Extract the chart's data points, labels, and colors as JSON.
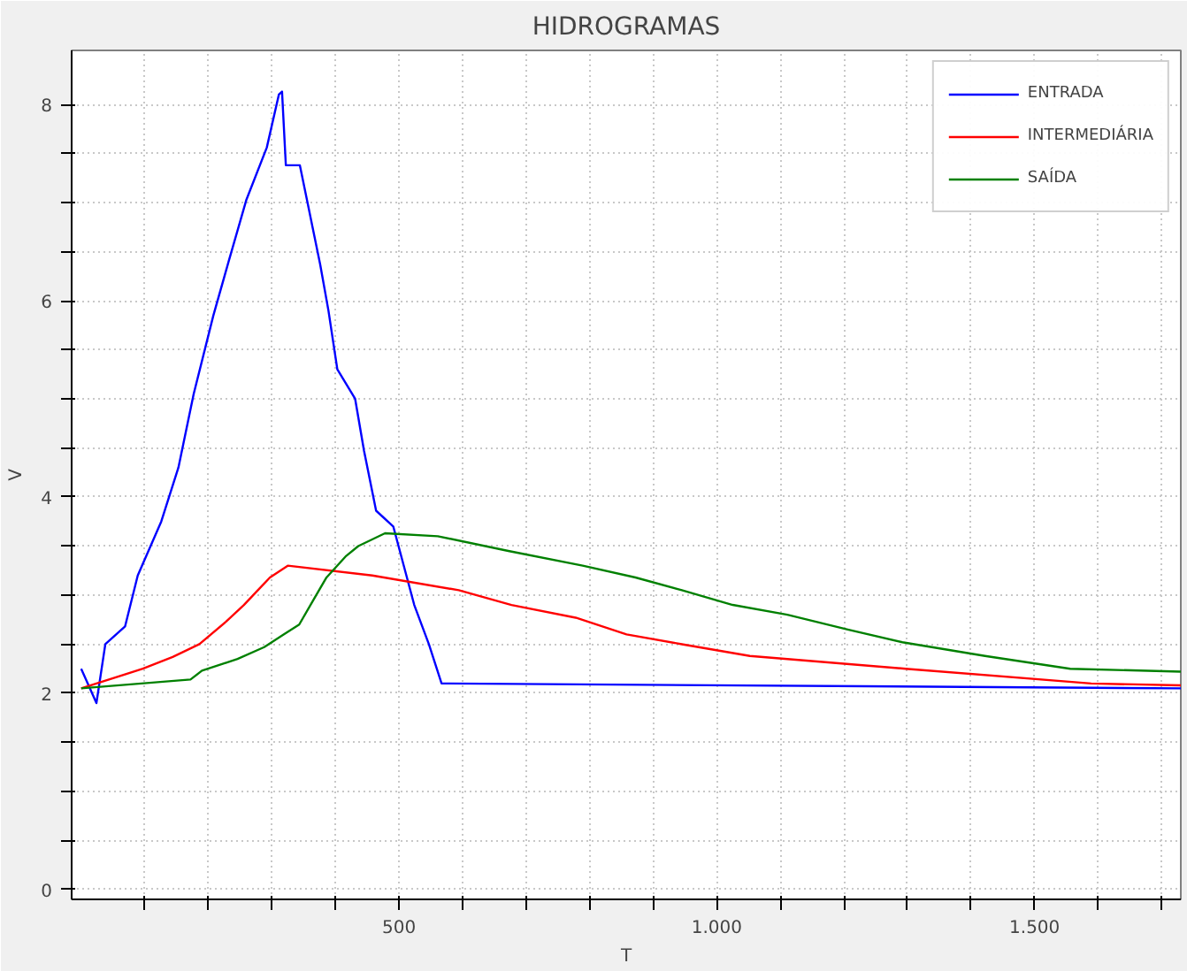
{
  "chart_data": {
    "type": "line",
    "title": "HIDROGRAMAS",
    "xlabel": "T",
    "ylabel": "V",
    "xlim": [
      -15,
      1730
    ],
    "ylim": [
      -0.1,
      8.55
    ],
    "xticks": [
      {
        "value": 100,
        "label": null
      },
      {
        "value": 200,
        "label": null
      },
      {
        "value": 300,
        "label": null
      },
      {
        "value": 400,
        "label": null
      },
      {
        "value": 500,
        "label": "500"
      },
      {
        "value": 600,
        "label": null
      },
      {
        "value": 700,
        "label": null
      },
      {
        "value": 800,
        "label": null
      },
      {
        "value": 900,
        "label": null
      },
      {
        "value": 1000,
        "label": "1.000"
      },
      {
        "value": 1100,
        "label": null
      },
      {
        "value": 1200,
        "label": null
      },
      {
        "value": 1300,
        "label": null
      },
      {
        "value": 1400,
        "label": null
      },
      {
        "value": 1500,
        "label": "1.500"
      },
      {
        "value": 1600,
        "label": null
      },
      {
        "value": 1700,
        "label": null
      }
    ],
    "yticks": [
      0,
      {
        "value": 0.5,
        "label": null
      },
      {
        "value": 1,
        "label": null
      },
      {
        "value": 1.5,
        "label": null
      },
      2,
      {
        "value": 2.5,
        "label": null
      },
      {
        "value": 3,
        "label": null
      },
      {
        "value": 3.5,
        "label": null
      },
      4,
      {
        "value": 4.5,
        "label": null
      },
      {
        "value": 5,
        "label": null
      },
      {
        "value": 5.5,
        "label": null
      },
      6,
      {
        "value": 6.5,
        "label": null
      },
      {
        "value": 7,
        "label": null
      },
      {
        "value": 7.5,
        "label": null
      },
      8
    ],
    "grid": true,
    "legend": "top right",
    "line_style": "solid",
    "series": [
      {
        "name": "ENTRADA",
        "color": "#0000ff",
        "x": [
          0,
          24,
          38,
          69,
          89,
          126,
          153,
          177,
          208,
          232,
          260,
          292,
          311,
          316,
          322,
          344,
          357,
          376,
          389,
          403,
          431,
          445,
          464,
          491,
          524,
          547,
          567,
          1730
        ],
        "values": [
          2.25,
          1.9,
          2.5,
          2.68,
          3.2,
          3.75,
          4.3,
          5.05,
          5.85,
          6.4,
          7.03,
          7.56,
          8.1,
          8.13,
          7.38,
          7.38,
          6.97,
          6.37,
          5.9,
          5.3,
          5.0,
          4.47,
          3.86,
          3.7,
          2.9,
          2.5,
          2.1,
          2.05
        ]
      },
      {
        "name": "INTERMEDIÁRIA",
        "color": "#ff0000",
        "x": [
          0,
          97,
          144,
          186,
          228,
          256,
          278,
          297,
          325,
          458,
          594,
          677,
          778,
          858,
          945,
          1052,
          1297,
          1589,
          1730
        ],
        "values": [
          2.05,
          2.25,
          2.37,
          2.5,
          2.73,
          2.9,
          3.05,
          3.18,
          3.3,
          3.2,
          3.05,
          2.9,
          2.77,
          2.6,
          2.5,
          2.38,
          2.25,
          2.1,
          2.08
        ]
      },
      {
        "name": "SAÍDA",
        "color": "#008000",
        "x": [
          0,
          172,
          190,
          246,
          288,
          319,
          343,
          367,
          386,
          417,
          436,
          478,
          561,
          672,
          789,
          872,
          945,
          1025,
          1111,
          1206,
          1292,
          1422,
          1556,
          1730
        ],
        "values": [
          2.05,
          2.14,
          2.23,
          2.35,
          2.47,
          2.6,
          2.7,
          2.97,
          3.18,
          3.4,
          3.5,
          3.63,
          3.6,
          3.45,
          3.3,
          3.18,
          3.05,
          2.9,
          2.8,
          2.65,
          2.52,
          2.38,
          2.25,
          2.22
        ]
      }
    ]
  }
}
